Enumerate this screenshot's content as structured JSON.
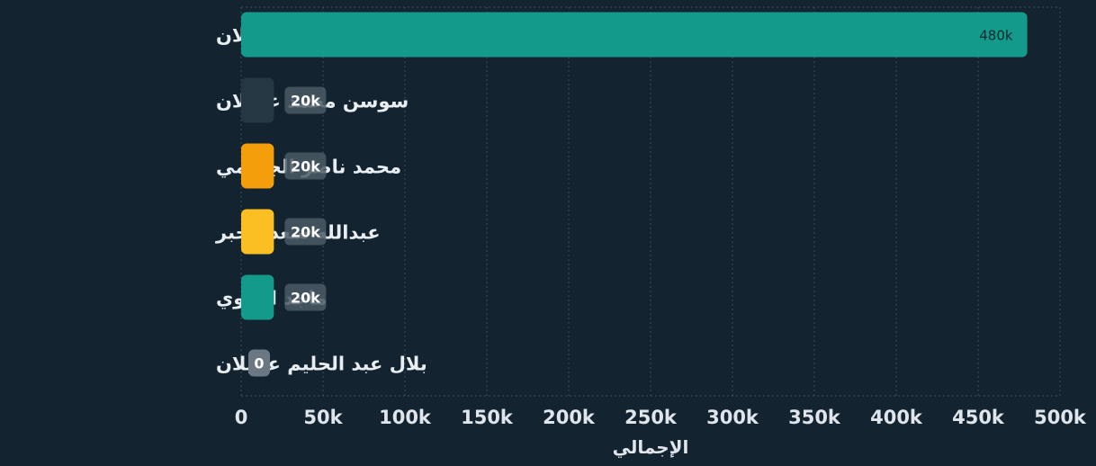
{
  "chart_data": {
    "type": "bar",
    "orientation": "horizontal",
    "categories": [
      "ديمة أيمن عقيلان",
      "سوسن محمد عقيلان",
      "محمد ناصر الجهيمي",
      "عبدالله سعد الجبر",
      "ماجد العلوي",
      "بلال عبد الحليم عقيلان"
    ],
    "values": [
      480000,
      20000,
      20000,
      20000,
      20000,
      0
    ],
    "data_labels": [
      "480k",
      "20k",
      "20k",
      "20k",
      "20k",
      "0"
    ],
    "bar_colors": [
      "#139a8a",
      "#263744",
      "#f59e0b",
      "#fbbf24",
      "#139a8a",
      "#94a3b8"
    ],
    "xlabel": "الإجمالي",
    "xlim": [
      0,
      500000
    ],
    "xticks": [
      0,
      50000,
      100000,
      150000,
      200000,
      250000,
      300000,
      350000,
      400000,
      450000,
      500000
    ],
    "xtick_labels": [
      "0",
      "50k",
      "100k",
      "150k",
      "200k",
      "250k",
      "300k",
      "350k",
      "400k",
      "450k",
      "500k"
    ],
    "grid": true,
    "grid_style": "dotted",
    "legend": "none"
  }
}
